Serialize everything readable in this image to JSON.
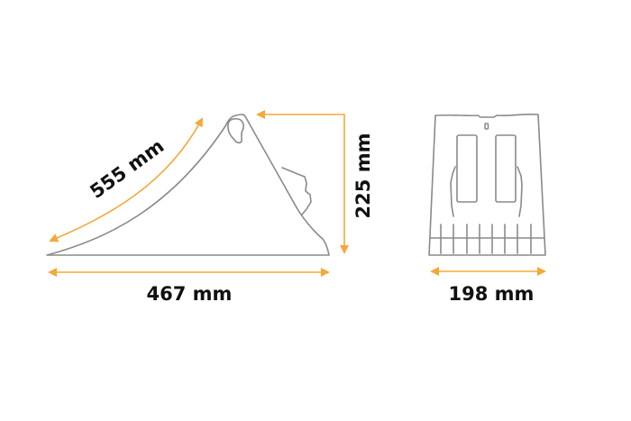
{
  "colors": {
    "dimension": "#F5A83A",
    "outline": "#8a8a8a",
    "text": "#111111"
  },
  "side_view": {
    "length_label": "555 mm",
    "base_label": "467 mm",
    "height_label": "225 mm"
  },
  "front_view": {
    "width_label": "198 mm"
  }
}
